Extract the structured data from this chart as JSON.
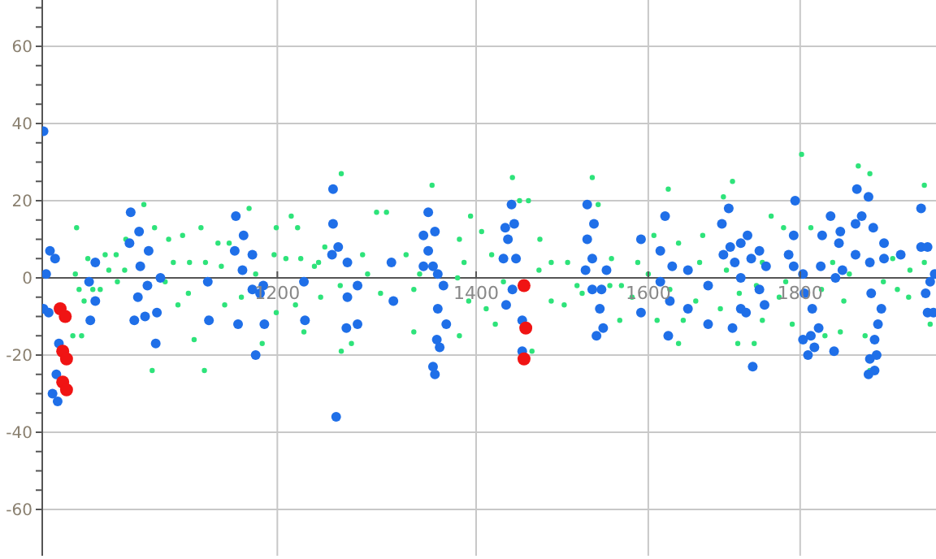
{
  "chart_data": {
    "type": "scatter",
    "log": "x",
    "grid": true,
    "marker": "circle",
    "xlim": [
      1000,
      2000
    ],
    "ylim": [
      -72,
      72
    ],
    "xticks": [
      1200,
      1400,
      1600,
      1800
    ],
    "legend": false,
    "yticks": [
      -60,
      {
        "value": -55,
        "label": null
      },
      {
        "value": -50,
        "label": null
      },
      {
        "value": -45,
        "label": null
      },
      -40,
      {
        "value": -35,
        "label": null
      },
      {
        "value": -30,
        "label": null
      },
      {
        "value": -25,
        "label": null
      },
      -20,
      {
        "value": -15,
        "label": null
      },
      {
        "value": -10,
        "label": null
      },
      {
        "value": -5,
        "label": null
      },
      0,
      {
        "value": 5,
        "label": null
      },
      {
        "value": 10,
        "label": null
      },
      {
        "value": 15,
        "label": null
      },
      20,
      {
        "value": 25,
        "label": null
      },
      {
        "value": 30,
        "label": null
      },
      {
        "value": 35,
        "label": null
      },
      40,
      {
        "value": 45,
        "label": null
      },
      {
        "value": 50,
        "label": null
      },
      {
        "value": 55,
        "label": null
      },
      60,
      {
        "value": 65,
        "label": null
      },
      {
        "value": 70,
        "label": null
      }
    ],
    "series": [
      {
        "color": "#2ee37a",
        "x": [
          1027,
          1026,
          1029,
          1033,
          1024,
          1031,
          1036,
          1040,
          1050,
          1046,
          1053,
          1059,
          1067,
          1066,
          1082,
          1091,
          1089,
          1100,
          1103,
          1107,
          1111,
          1115,
          1121,
          1125,
          1131,
          1134,
          1135,
          1146,
          1149,
          1152,
          1156,
          1174,
          1167,
          1186,
          1197,
          1199,
          1199,
          1213,
          1219,
          1208,
          1222,
          1217,
          1225,
          1235,
          1241,
          1245,
          1261,
          1353,
          1296,
          1306,
          1394,
          1239,
          1282,
          1326,
          1287,
          1334,
          1382,
          1387,
          1392,
          1271,
          1261,
          1334,
          1382,
          1406,
          1417,
          1411,
          1421,
          1440,
          1448,
          1458,
          1462,
          1471,
          1484,
          1484,
          1503,
          1499,
          1532,
          1539,
          1514,
          1553,
          1565,
          1625,
          1708,
          1696,
          1802,
          1883,
          1900,
          1982,
          1760,
          1777,
          1815,
          1669,
          1607,
          1638,
          1555,
          1587,
          1665,
          1748,
          1846,
          1934,
          1982,
          1567,
          1627,
          1717,
          1771,
          1862,
          1941,
          1991,
          1611,
          1644,
          1692,
          1748,
          1789,
          1857,
          1893,
          1638,
          1715,
          1737,
          1900,
          1835,
          1958,
          1060,
          1120,
          1180,
          1260,
          1300,
          1340,
          1380,
          1430,
          1470,
          1520,
          1580,
          1600,
          1660,
          1700,
          1740,
          1780,
          1830,
          1870,
          1920,
          1960
        ],
        "values": [
          13,
          1,
          -3,
          -6,
          -15,
          -15,
          5,
          -3,
          6,
          -3,
          2,
          6,
          10,
          2,
          19,
          13,
          -24,
          -1,
          10,
          4,
          -7,
          11,
          4,
          -16,
          13,
          -24,
          4,
          9,
          3,
          -7,
          9,
          18,
          -5,
          -17,
          6,
          -9,
          13,
          16,
          13,
          5,
          5,
          -7,
          -14,
          3,
          -5,
          8,
          27,
          24,
          17,
          17,
          16,
          4,
          6,
          6,
          1,
          -3,
          10,
          4,
          -6,
          -17,
          -19,
          -14,
          -15,
          12,
          6,
          -8,
          -12,
          26,
          20,
          20,
          -19,
          10,
          4,
          -6,
          4,
          -7,
          26,
          19,
          -2,
          -2,
          -11,
          23,
          25,
          21,
          32,
          29,
          27,
          24,
          16,
          13,
          13,
          11,
          11,
          9,
          5,
          4,
          4,
          4,
          4,
          5,
          4,
          -2,
          -3,
          -4,
          -5,
          -6,
          -3,
          -12,
          -11,
          -11,
          -8,
          -11,
          -12,
          -14,
          -15,
          -17,
          -17,
          -17,
          -24,
          -15,
          -5,
          -1,
          -4,
          1,
          -2,
          -4,
          1,
          0,
          -1,
          2,
          -4,
          -5,
          1,
          -6,
          2,
          -2,
          -1,
          -3,
          1,
          -1,
          2
        ]
      },
      {
        "color": "#1f6fe8",
        "x": [
          1001,
          1003,
          1006,
          1010,
          1001,
          1005,
          1013,
          1011,
          1008,
          1012,
          1037,
          1042,
          1042,
          1038,
          1071,
          1070,
          1078,
          1079,
          1077,
          1074,
          1086,
          1085,
          1083,
          1093,
          1092,
          1096,
          1137,
          1138,
          1162,
          1169,
          1161,
          1168,
          1164,
          1177,
          1184,
          1177,
          1180,
          1187,
          1188,
          1225,
          1226,
          1253,
          1253,
          1258,
          1252,
          1256,
          1267,
          1267,
          1266,
          1277,
          1277,
          1311,
          1313,
          1344,
          1349,
          1349,
          1344,
          1354,
          1356,
          1359,
          1359,
          1358,
          1361,
          1365,
          1368,
          1354,
          1356,
          1432,
          1439,
          1442,
          1435,
          1444,
          1430,
          1440,
          1433,
          1451,
          1451,
          1526,
          1534,
          1526,
          1532,
          1524,
          1532,
          1543,
          1541,
          1545,
          1537,
          1549,
          1591,
          1591,
          1615,
          1621,
          1630,
          1615,
          1627,
          1625,
          1650,
          1650,
          1676,
          1676,
          1694,
          1703,
          1696,
          1705,
          1711,
          1719,
          1728,
          1719,
          1733,
          1708,
          1719,
          1726,
          1735,
          1744,
          1753,
          1744,
          1751,
          1784,
          1791,
          1793,
          1791,
          1804,
          1806,
          1817,
          1804,
          1811,
          1815,
          1820,
          1826,
          1829,
          1831,
          1843,
          1857,
          1855,
          1850,
          1848,
          1860,
          1881,
          1898,
          1879,
          1888,
          1879,
          1905,
          1900,
          1902,
          1912,
          1907,
          1900,
          1910,
          1898,
          1907,
          1921,
          1921,
          1917,
          1946,
          1977,
          1977,
          1987,
          1998,
          1991,
          1987,
          1996,
          1984
        ],
        "values": [
          38,
          1,
          7,
          5,
          -8,
          -9,
          -17,
          -25,
          -30,
          -32,
          -1,
          4,
          -6,
          -11,
          17,
          9,
          12,
          3,
          -5,
          -11,
          7,
          -2,
          -10,
          -9,
          -17,
          0,
          -1,
          -11,
          16,
          11,
          7,
          2,
          -12,
          -3,
          -4,
          6,
          -20,
          -2,
          -12,
          -1,
          -11,
          23,
          14,
          8,
          6,
          -36,
          4,
          -5,
          -13,
          -2,
          -12,
          4,
          -6,
          11,
          17,
          7,
          3,
          3,
          12,
          1,
          -8,
          -16,
          -18,
          -2,
          -12,
          -23,
          -25,
          13,
          19,
          14,
          10,
          5,
          5,
          -3,
          -7,
          -11,
          -19,
          19,
          14,
          10,
          5,
          2,
          -3,
          -3,
          -8,
          -13,
          -15,
          2,
          10,
          -9,
          7,
          16,
          3,
          -1,
          -6,
          -15,
          2,
          -8,
          -2,
          -12,
          14,
          18,
          6,
          8,
          4,
          9,
          11,
          0,
          5,
          -13,
          -8,
          -9,
          -23,
          7,
          3,
          -3,
          -7,
          6,
          11,
          20,
          3,
          1,
          -4,
          -8,
          -16,
          -20,
          -15,
          -18,
          -13,
          3,
          11,
          16,
          12,
          9,
          0,
          -19,
          2,
          23,
          21,
          14,
          16,
          6,
          13,
          4,
          -4,
          -12,
          -16,
          -21,
          -20,
          -25,
          -24,
          9,
          5,
          -8,
          6,
          18,
          8,
          8,
          1,
          -1,
          -9,
          -9,
          -4
        ]
      },
      {
        "color": "#f01414",
        "x": [
          1014,
          1018,
          1016,
          1019,
          1016,
          1019,
          1453,
          1455,
          1453
        ],
        "values": [
          -8,
          -10,
          -19,
          -21,
          -27,
          -29,
          -2,
          -13,
          -21
        ]
      }
    ]
  }
}
